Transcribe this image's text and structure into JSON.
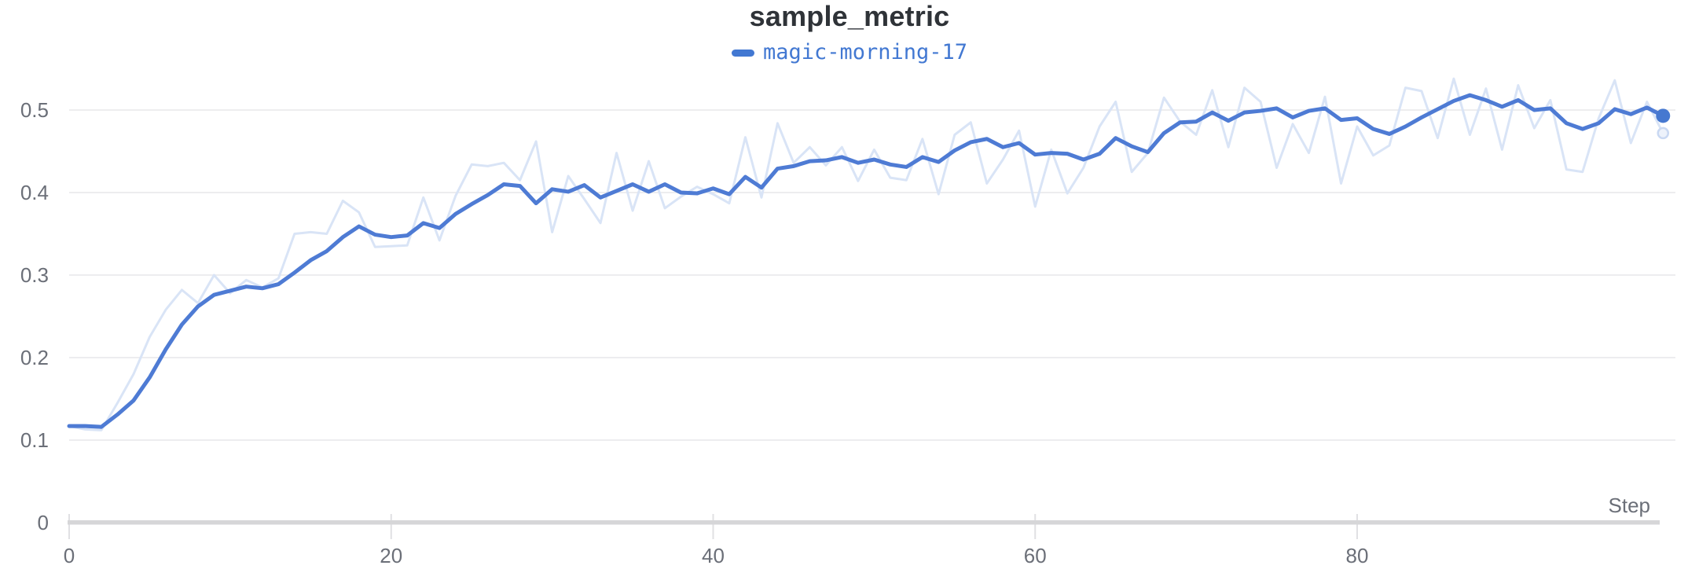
{
  "title": "sample_metric",
  "legend": [
    {
      "label": "magic-morning-17",
      "color": "#4278d2"
    }
  ],
  "colors": {
    "accent_line": "#4e7bd4",
    "raw_line": "#d9e4f6",
    "end_dot": "#4678d0",
    "end_ring_stroke": "#c9d8f2",
    "end_ring_fill": "#edf2fb",
    "gridline": "#ededef",
    "tick": "#e0e0e3",
    "axis_line": "#d6d6d8",
    "tick_label": "#6b6f78",
    "title_text": "#2f3338",
    "background": "#ffffff"
  },
  "chart_data": {
    "type": "line",
    "title": "sample_metric",
    "xlabel": "Step",
    "ylabel": "",
    "xlim": [
      0,
      99.7
    ],
    "ylim": [
      0,
      0.55
    ],
    "grid": "horizontal-only",
    "legend_position": "top-center",
    "x_start": 0,
    "x_step": 1,
    "x_ticks": [
      {
        "label": "0",
        "value": 0
      },
      {
        "label": "20",
        "value": 20
      },
      {
        "label": "40",
        "value": 40
      },
      {
        "label": "60",
        "value": 60
      },
      {
        "label": "80",
        "value": 80
      }
    ],
    "y_ticks": [
      {
        "label": "0",
        "value": 0
      },
      {
        "label": "0.1",
        "value": 0.1
      },
      {
        "label": "0.2",
        "value": 0.2
      },
      {
        "label": "0.3",
        "value": 0.3
      },
      {
        "label": "0.4",
        "value": 0.4
      },
      {
        "label": "0.5",
        "value": 0.5
      }
    ],
    "series": [
      {
        "name": "magic-morning-17",
        "role": "raw-unsmoothed",
        "color": "#d9e4f6",
        "line_width": 3,
        "end_marker": "open-circle",
        "values": [
          0.117,
          0.113,
          0.112,
          0.145,
          0.18,
          0.225,
          0.258,
          0.282,
          0.266,
          0.3,
          0.278,
          0.294,
          0.285,
          0.296,
          0.35,
          0.352,
          0.35,
          0.39,
          0.376,
          0.334,
          0.335,
          0.336,
          0.394,
          0.342,
          0.396,
          0.434,
          0.432,
          0.436,
          0.415,
          0.462,
          0.352,
          0.42,
          0.392,
          0.363,
          0.448,
          0.378,
          0.438,
          0.381,
          0.395,
          0.407,
          0.398,
          0.387,
          0.467,
          0.394,
          0.484,
          0.436,
          0.455,
          0.433,
          0.455,
          0.414,
          0.452,
          0.418,
          0.415,
          0.465,
          0.398,
          0.47,
          0.485,
          0.411,
          0.44,
          0.475,
          0.383,
          0.452,
          0.399,
          0.43,
          0.48,
          0.51,
          0.425,
          0.448,
          0.515,
          0.486,
          0.47,
          0.524,
          0.455,
          0.527,
          0.51,
          0.43,
          0.483,
          0.448,
          0.516,
          0.411,
          0.48,
          0.445,
          0.457,
          0.527,
          0.523,
          0.466,
          0.538,
          0.47,
          0.526,
          0.452,
          0.53,
          0.478,
          0.512,
          0.428,
          0.425,
          0.49,
          0.536,
          0.46,
          0.51,
          0.472
        ]
      },
      {
        "name": "magic-morning-17",
        "role": "smoothed",
        "color": "#4e7bd4",
        "line_width": 5,
        "end_marker": "filled-dot",
        "values": [
          0.117,
          0.117,
          0.116,
          0.131,
          0.148,
          0.176,
          0.21,
          0.24,
          0.262,
          0.276,
          0.281,
          0.286,
          0.284,
          0.289,
          0.303,
          0.318,
          0.329,
          0.346,
          0.359,
          0.349,
          0.346,
          0.348,
          0.363,
          0.357,
          0.374,
          0.386,
          0.397,
          0.41,
          0.408,
          0.387,
          0.404,
          0.401,
          0.409,
          0.394,
          0.402,
          0.41,
          0.401,
          0.41,
          0.4,
          0.399,
          0.405,
          0.398,
          0.419,
          0.406,
          0.429,
          0.432,
          0.438,
          0.439,
          0.443,
          0.436,
          0.44,
          0.434,
          0.431,
          0.443,
          0.437,
          0.451,
          0.461,
          0.465,
          0.455,
          0.46,
          0.446,
          0.448,
          0.447,
          0.44,
          0.447,
          0.466,
          0.456,
          0.449,
          0.472,
          0.485,
          0.486,
          0.497,
          0.487,
          0.497,
          0.499,
          0.502,
          0.491,
          0.499,
          0.502,
          0.488,
          0.49,
          0.477,
          0.471,
          0.48,
          0.491,
          0.501,
          0.511,
          0.518,
          0.512,
          0.504,
          0.512,
          0.5,
          0.502,
          0.484,
          0.477,
          0.484,
          0.501,
          0.495,
          0.503,
          0.493
        ]
      }
    ]
  }
}
